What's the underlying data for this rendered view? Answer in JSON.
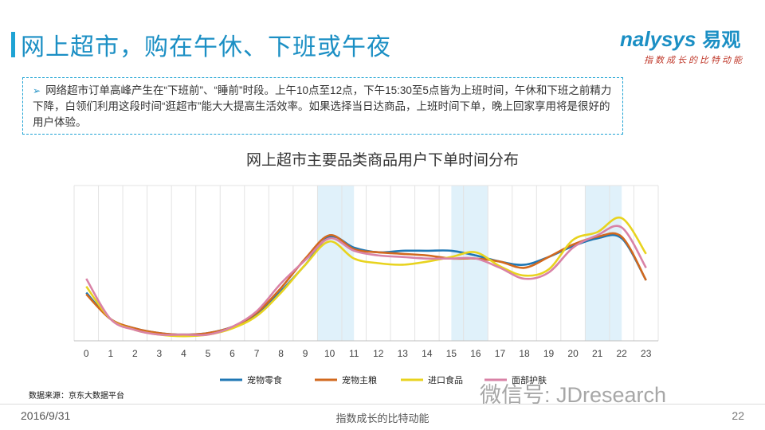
{
  "page": {
    "title": "网上超市，购在午休、下班或午夜",
    "logo": {
      "brand": "nalysys",
      "brand_cn": "易观",
      "slogan": "指数成长的比特动能"
    },
    "note": "网络超市订单高峰产生在“下班前”、“睡前”时段。上午10点至12点，下午15:30至5点皆为上班时间，午休和下班之前精力下降，白领们利用这段时间“逛超市”能大大提高生活效率。如果选择当日达商品，上班时间下单，晚上回家享用将是很好的用户体验。",
    "source": "数据来源：京东大数据平台",
    "wechat": "微信号: JDresearch",
    "footer": {
      "date": "2016/9/31",
      "center": "指数成长的比特动能",
      "page_number": "22"
    }
  },
  "chart_data": {
    "type": "line",
    "title": "网上超市主要品类商品用户下单时间分布",
    "x": [
      0,
      1,
      2,
      3,
      4,
      5,
      6,
      7,
      8,
      9,
      10,
      11,
      12,
      13,
      14,
      15,
      16,
      17,
      18,
      19,
      20,
      21,
      22,
      23
    ],
    "ylim": [
      0,
      100
    ],
    "grid": true,
    "legend_position": "bottom",
    "highlight_bands": [
      [
        10,
        11.5
      ],
      [
        15.5,
        17
      ],
      [
        21,
        22.5
      ]
    ],
    "series": [
      {
        "name": "宠物零食",
        "color": "#1f77b4",
        "values": [
          31,
          14,
          8,
          5,
          4,
          5,
          9,
          17,
          32,
          49,
          67,
          60,
          57,
          58,
          58,
          58,
          55,
          51,
          49,
          54,
          61,
          66,
          66,
          39
        ]
      },
      {
        "name": "宠物主粮",
        "color": "#d2691e",
        "values": [
          30,
          14,
          8,
          5,
          4,
          5,
          9,
          18,
          34,
          53,
          68,
          59,
          57,
          56,
          55,
          53,
          53,
          51,
          47,
          54,
          62,
          67,
          67,
          39
        ]
      },
      {
        "name": "进口食品",
        "color": "#e8d31e",
        "values": [
          35,
          14,
          7,
          4,
          3,
          4,
          8,
          16,
          31,
          49,
          64,
          53,
          50,
          49,
          51,
          54,
          57,
          48,
          42,
          46,
          65,
          70,
          79,
          56
        ]
      },
      {
        "name": "面部护肤",
        "color": "#d982a6",
        "values": [
          40,
          14,
          7,
          4,
          4,
          4,
          9,
          19,
          37,
          52,
          66,
          58,
          55,
          54,
          53,
          53,
          53,
          47,
          40,
          44,
          60,
          68,
          73,
          47
        ]
      }
    ]
  }
}
